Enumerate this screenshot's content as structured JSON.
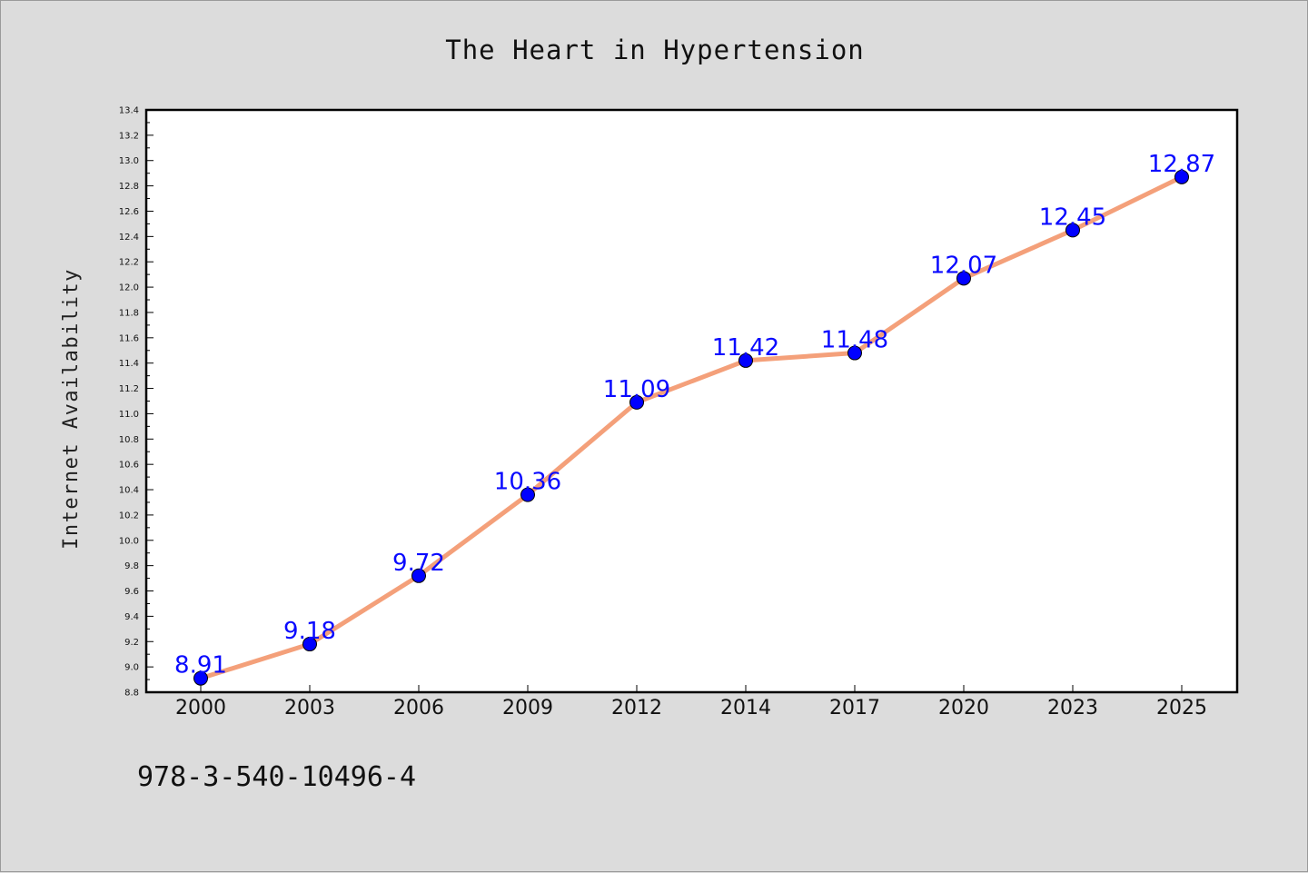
{
  "chart_data": {
    "type": "line",
    "title": "The Heart in Hypertension",
    "xlabel": "",
    "ylabel": "Internet Availability",
    "categories": [
      "2000",
      "2003",
      "2006",
      "2009",
      "2012",
      "2014",
      "2017",
      "2020",
      "2023",
      "2025"
    ],
    "series": [
      {
        "values": [
          8.91,
          9.18,
          9.72,
          10.36,
          11.09,
          11.42,
          11.48,
          12.07,
          12.45,
          12.87
        ],
        "data_labels": [
          "8.91",
          "9.18",
          "9.72",
          "10.36",
          "11.09",
          "11.42",
          "11.48",
          "12.07",
          "12.45",
          "12.87"
        ],
        "line_color": "#f4a07a",
        "marker_color": "#0000ff"
      }
    ],
    "ylim": [
      8.8,
      13.4
    ],
    "yticks": [
      "8.8",
      "9.0",
      "9.2",
      "9.4",
      "9.6",
      "9.8",
      "10.0",
      "10.2",
      "10.4",
      "10.6",
      "10.8",
      "11.0",
      "11.2",
      "11.4",
      "11.6",
      "11.8",
      "12.0",
      "12.2",
      "12.4",
      "12.6",
      "12.8",
      "13.0",
      "13.2",
      "13.4"
    ],
    "grid": false,
    "legend": "none",
    "label_color": "#0000ff",
    "background_color": "#dcdcdc",
    "plot_background": "#ffffff"
  },
  "footnote": "978-3-540-10496-4"
}
